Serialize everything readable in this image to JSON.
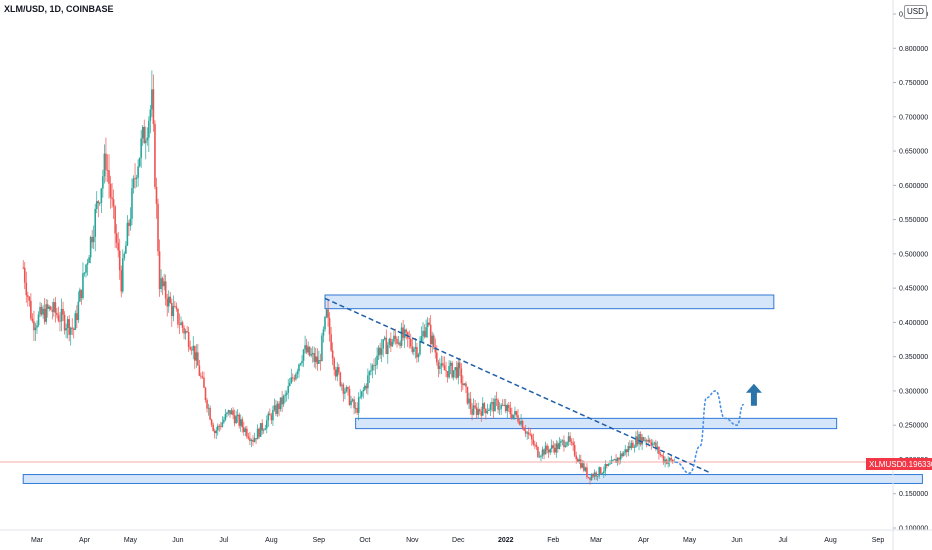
{
  "header": {
    "symbol_title": "XLM/USD, 1D, COINBASE",
    "currency_button": "USD"
  },
  "price_tag": {
    "symbol": "XLMUSD",
    "value": "0.196330",
    "color": "#f23645"
  },
  "colors": {
    "up": "#26a69a",
    "down": "#ef5350",
    "zone_fill": "#cfe2f9",
    "zone_stroke": "#3179d6",
    "trendline": "#1f5ea8",
    "arrow": "#2b74a9",
    "current_line": "#f7a9a9"
  },
  "chart_data": {
    "type": "candlestick",
    "title": "XLM/USD, 1D, COINBASE",
    "x_axis": {
      "labels": [
        "Mar",
        "Apr",
        "May",
        "Jun",
        "Jul",
        "Aug",
        "Sep",
        "Oct",
        "Nov",
        "Dec",
        "2022",
        "Feb",
        "Mar",
        "Apr",
        "May",
        "Jun",
        "Jul",
        "Aug",
        "Sep"
      ]
    },
    "y_axis": {
      "min": 0.1,
      "max": 0.85,
      "labels": [
        "0.850000",
        "0.800000",
        "0.750000",
        "0.700000",
        "0.650000",
        "0.600000",
        "0.550000",
        "0.500000",
        "0.450000",
        "0.400000",
        "0.350000",
        "0.300000",
        "0.250000",
        "0.200000",
        "0.150000",
        "0.100000"
      ]
    },
    "anchors": [
      {
        "date": "2021-02-20",
        "price": 0.48
      },
      {
        "date": "2021-02-26",
        "price": 0.4
      },
      {
        "date": "2021-03-10",
        "price": 0.42
      },
      {
        "date": "2021-03-25",
        "price": 0.39
      },
      {
        "date": "2021-04-05",
        "price": 0.52
      },
      {
        "date": "2021-04-15",
        "price": 0.64
      },
      {
        "date": "2021-04-25",
        "price": 0.46
      },
      {
        "date": "2021-05-05",
        "price": 0.63
      },
      {
        "date": "2021-05-15",
        "price": 0.72
      },
      {
        "date": "2021-05-20",
        "price": 0.46
      },
      {
        "date": "2021-05-28",
        "price": 0.42
      },
      {
        "date": "2021-06-10",
        "price": 0.37
      },
      {
        "date": "2021-06-25",
        "price": 0.24
      },
      {
        "date": "2021-07-05",
        "price": 0.27
      },
      {
        "date": "2021-07-20",
        "price": 0.23
      },
      {
        "date": "2021-08-10",
        "price": 0.29
      },
      {
        "date": "2021-08-22",
        "price": 0.36
      },
      {
        "date": "2021-09-01",
        "price": 0.34
      },
      {
        "date": "2021-09-06",
        "price": 0.41
      },
      {
        "date": "2021-09-12",
        "price": 0.33
      },
      {
        "date": "2021-09-25",
        "price": 0.27
      },
      {
        "date": "2021-10-10",
        "price": 0.36
      },
      {
        "date": "2021-10-25",
        "price": 0.38
      },
      {
        "date": "2021-11-05",
        "price": 0.36
      },
      {
        "date": "2021-11-10",
        "price": 0.4
      },
      {
        "date": "2021-11-20",
        "price": 0.33
      },
      {
        "date": "2021-12-01",
        "price": 0.33
      },
      {
        "date": "2021-12-10",
        "price": 0.27
      },
      {
        "date": "2021-12-27",
        "price": 0.28
      },
      {
        "date": "2022-01-10",
        "price": 0.26
      },
      {
        "date": "2022-01-22",
        "price": 0.21
      },
      {
        "date": "2022-02-05",
        "price": 0.22
      },
      {
        "date": "2022-02-10",
        "price": 0.23
      },
      {
        "date": "2022-02-24",
        "price": 0.175
      },
      {
        "date": "2022-03-10",
        "price": 0.19
      },
      {
        "date": "2022-03-28",
        "price": 0.23
      },
      {
        "date": "2022-04-05",
        "price": 0.23
      },
      {
        "date": "2022-04-14",
        "price": 0.2
      },
      {
        "date": "2022-04-22",
        "price": 0.196
      }
    ],
    "annotations": {
      "resistance_zone": {
        "from": "2021-09-05",
        "to": "2022-06-25",
        "low": 0.42,
        "high": 0.44
      },
      "mid_zone": {
        "from": "2021-09-25",
        "to": "2022-08-05",
        "low": 0.245,
        "high": 0.26
      },
      "support_zone": {
        "from": "2021-02-20",
        "to": "2022-09-30",
        "low": 0.165,
        "high": 0.178
      },
      "trendline": {
        "from": {
          "date": "2021-09-05",
          "price": 0.435
        },
        "to": {
          "date": "2022-05-15",
          "price": 0.18
        }
      },
      "projection": [
        {
          "date": "2022-04-22",
          "price": 0.196
        },
        {
          "date": "2022-05-01",
          "price": 0.18
        },
        {
          "date": "2022-05-08",
          "price": 0.22
        },
        {
          "date": "2022-05-12",
          "price": 0.29
        },
        {
          "date": "2022-05-18",
          "price": 0.3
        },
        {
          "date": "2022-05-24",
          "price": 0.26
        },
        {
          "date": "2022-06-01",
          "price": 0.25
        },
        {
          "date": "2022-06-05",
          "price": 0.28
        }
      ],
      "up_arrow": {
        "date": "2022-06-12",
        "price": 0.29
      }
    },
    "current_price": 0.19633
  }
}
